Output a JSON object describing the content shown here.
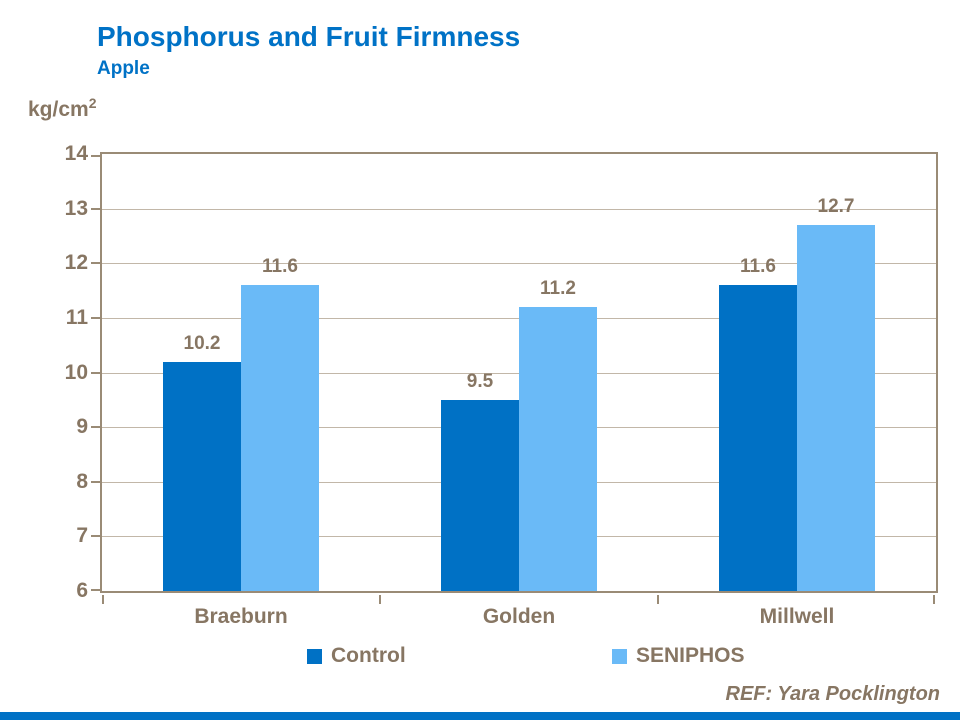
{
  "header": {
    "title": "Phosphorus and Fruit Firmness",
    "subtitle": "Apple"
  },
  "unit": {
    "base": "kg/cm",
    "exp": "2"
  },
  "ref_text": "REF: Yara Pocklington",
  "colors": {
    "title": "#0072C6",
    "text": "#877663",
    "axis": "#9A8B76",
    "gridline": "#C2B7A8",
    "control": "#0071C5",
    "seniphos": "#6ABAF7",
    "footer_bar": "#0071C5"
  },
  "chart_data": {
    "type": "bar",
    "title": "Phosphorus and Fruit Firmness",
    "subtitle": "Apple",
    "ylabel": "kg/cm2",
    "xlabel": "",
    "ylim": [
      6,
      14
    ],
    "yticks": [
      6,
      7,
      8,
      9,
      10,
      11,
      12,
      13,
      14
    ],
    "grid": true,
    "legend_position": "bottom",
    "data_labels": true,
    "categories": [
      "Braeburn",
      "Golden",
      "Millwell"
    ],
    "series": [
      {
        "name": "Control",
        "color": "#0071C5",
        "values": [
          10.2,
          9.5,
          11.6
        ]
      },
      {
        "name": "SENIPHOS",
        "color": "#6ABAF7",
        "values": [
          11.6,
          11.2,
          12.7
        ]
      }
    ]
  }
}
